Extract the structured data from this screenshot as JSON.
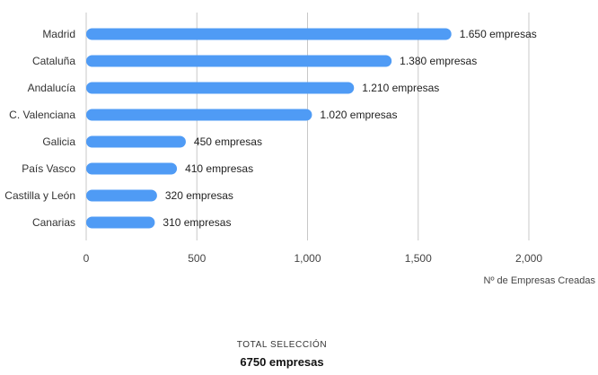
{
  "chart_data": {
    "type": "bar",
    "orientation": "horizontal",
    "categories": [
      "Madrid",
      "Cataluña",
      "Andalucía",
      "C. Valenciana",
      "Galicia",
      "País Vasco",
      "Castilla y León",
      "Canarias"
    ],
    "values": [
      1650,
      1380,
      1210,
      1020,
      450,
      410,
      320,
      310
    ],
    "data_labels": [
      "1.650 empresas",
      "1.380 empresas",
      "1.210 empresas",
      "1.020 empresas",
      "450 empresas",
      "410 empresas",
      "320 empresas",
      "310 empresas"
    ],
    "title": "",
    "xlabel": "Nº de Empresas Creadas",
    "ylabel": "",
    "xlim": [
      0,
      2000
    ],
    "xticks": [
      0,
      500,
      1000,
      1500,
      2000
    ],
    "xtick_labels": [
      "0",
      "500",
      "1,000",
      "1,500",
      "2,000"
    ],
    "grid": "vertical",
    "legend": "none",
    "bar_color": "#4f9bf5",
    "grid_color": "#c8c8c8"
  },
  "summary": {
    "label": "TOTAL SELECCIÓN",
    "value": "6750 empresas"
  }
}
